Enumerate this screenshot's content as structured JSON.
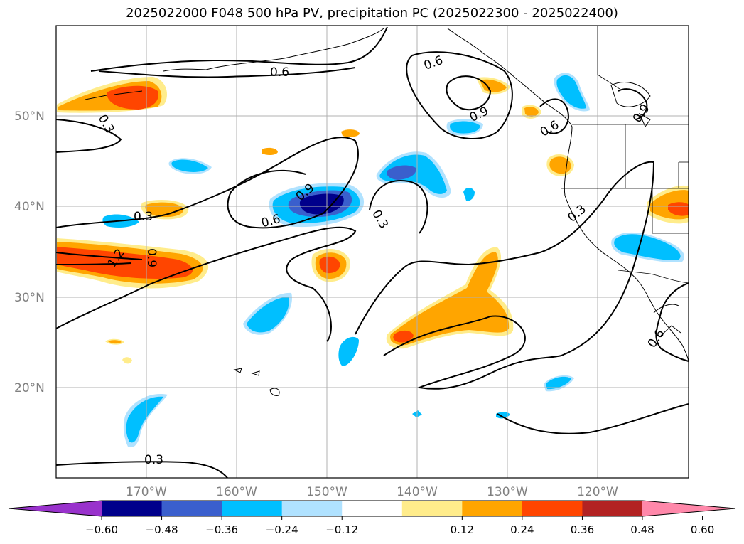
{
  "title": "2025022000 F048 500 hPa PV, precipitation PC (2025022300 - 2025022400)",
  "latitude_labels": [
    "50°N",
    "40°N",
    "30°N",
    "20°N"
  ],
  "longitude_labels": [
    "170°W",
    "160°W",
    "150°W",
    "140°W",
    "130°W",
    "120°W"
  ],
  "contour_labels": [
    "0.6",
    "0.6",
    "0.9",
    "0.3",
    "0.9",
    "0.3",
    "0.6",
    "0.3",
    "1.2",
    "0.9",
    "0.9",
    "0.3",
    "0.3",
    "0.6",
    "0.6",
    "0.3"
  ],
  "colorbar": {
    "colors": [
      "#9932cc",
      "#00008b",
      "#3a5fcd",
      "#00bfff",
      "#b0e2ff",
      "#ffffff",
      "#ffec8b",
      "#ffa500",
      "#ff4500",
      "#b22222",
      "#ff88aa"
    ],
    "tick_labels": [
      "−0.60",
      "−0.48",
      "−0.36",
      "−0.24",
      "−0.12",
      "0.12",
      "0.24",
      "0.36",
      "0.48",
      "0.60"
    ]
  },
  "field_colors": {
    "neg_strong": "#00008b",
    "neg_mid": "#3a5fcd",
    "neg": "#00bfff",
    "neg_light": "#b0e2ff",
    "pos_light": "#ffec8b",
    "pos": "#ffa500",
    "pos_mid": "#ff4500"
  }
}
